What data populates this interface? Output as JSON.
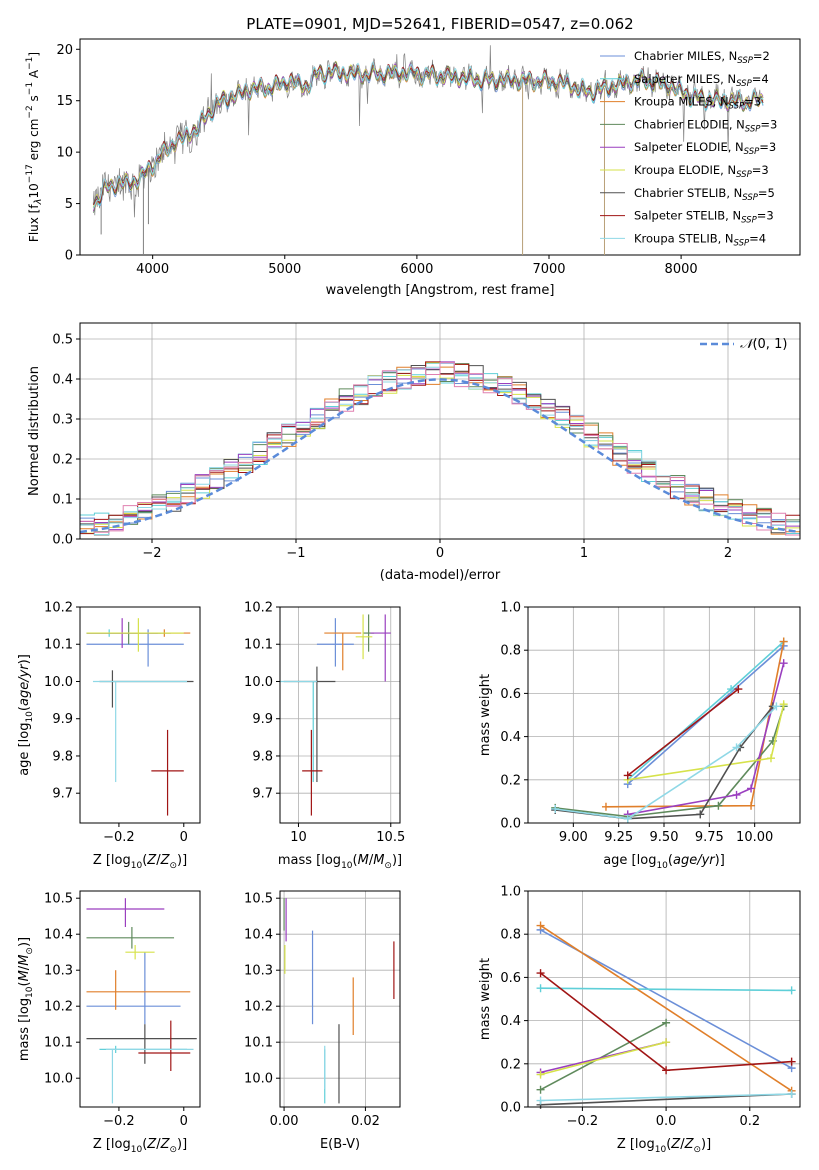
{
  "figure": {
    "title": "PLATE=0901, MJD=52641, FIBERID=0547, z=0.062"
  },
  "colors": {
    "series": [
      "#6b8fd8",
      "#5fcfd8",
      "#e07f2a",
      "#5f8a5c",
      "#9a3fbf",
      "#d6e24a",
      "#505050",
      "#a01515",
      "#8fd8e6"
    ],
    "data": "#808080",
    "pink": "#e080b0",
    "gauss": "#5b8bd9"
  },
  "legend_top": [
    "Chabrier MILES, N$_{SSP}$=2",
    "Salpeter MILES, N$_{SSP}$=4",
    "Kroupa MILES, N$_{SSP}$=3",
    "Chabrier ELODIE, N$_{SSP}$=3",
    "Salpeter ELODIE, N$_{SSP}$=3",
    "Kroupa ELODIE, N$_{SSP}$=3",
    "Chabrier STELIB, N$_{SSP}$=5",
    "Salpeter STELIB, N$_{SSP}$=3",
    "Kroupa STELIB, N$_{SSP}$=4"
  ],
  "chart_data": [
    {
      "type": "line",
      "name": "spectrum",
      "xlabel": "wavelength [Angstrom, rest frame]",
      "ylabel": "Flux [f_λ10^-17 erg cm^-2 s^-1 A^-1]",
      "xlim": [
        3450,
        8900
      ],
      "ylim": [
        0,
        21
      ],
      "xticks": [
        4000,
        5000,
        6000,
        7000,
        8000
      ],
      "yticks": [
        0,
        5,
        10,
        15,
        20
      ],
      "continuum": {
        "x": [
          3550,
          3650,
          3750,
          3850,
          3950,
          4050,
          4150,
          4250,
          4350,
          4450,
          4550,
          4650,
          4750,
          4850,
          4950,
          5050,
          5150,
          5250,
          5350,
          5500,
          5700,
          5900,
          6100,
          6300,
          6500,
          6700,
          6900,
          7100,
          7300,
          7500,
          7700,
          7900,
          8100,
          8300,
          8500,
          8700
        ],
        "y": [
          5,
          6.5,
          7,
          7,
          8,
          9.5,
          10.8,
          11.5,
          12.5,
          14.2,
          15.2,
          15.6,
          16.2,
          16.2,
          16.5,
          17,
          16.3,
          17.6,
          17.8,
          17.6,
          17.6,
          17.7,
          17.5,
          17.3,
          17.0,
          17.0,
          16.9,
          16.8,
          15.8,
          16.5,
          17.0,
          16.5,
          15.3,
          15.0,
          14.9,
          15.2
        ]
      }
    },
    {
      "type": "bar",
      "name": "residual-histogram",
      "xlabel": "(data-model)/error",
      "ylabel": "Normed distribution",
      "xlim": [
        -2.5,
        2.5
      ],
      "ylim": [
        0,
        0.54
      ],
      "xticks": [
        -2,
        -1,
        0,
        1,
        2
      ],
      "yticks": [
        0.0,
        0.1,
        0.2,
        0.3,
        0.4,
        0.5
      ],
      "bin_width": 0.1,
      "legend": "N(0,1)"
    },
    {
      "type": "scatter",
      "name": "age-vs-Z",
      "xlabel": "Z [log10(Z/Z⊙)]",
      "ylabel": "age  [log10(age/yr)]",
      "xlim": [
        -0.32,
        0.05
      ],
      "ylim": [
        9.62,
        10.2
      ],
      "xticks": [
        -0.2,
        0.0
      ],
      "yticks": [
        9.7,
        9.8,
        9.9,
        10.0,
        10.1,
        10.2
      ],
      "points": [
        {
          "x": -0.11,
          "y": 10.1,
          "xerr": [
            0.19,
            0.11
          ],
          "yerr": [
            0.06,
            0.04
          ]
        },
        {
          "x": -0.23,
          "y": 10.13,
          "xerr": [
            0.07,
            0.16
          ],
          "yerr": [
            0.01,
            0.01
          ]
        },
        {
          "x": -0.06,
          "y": 10.13,
          "xerr": [
            0.24,
            0.08
          ],
          "yerr": [
            0.01,
            0.01
          ]
        },
        {
          "x": -0.17,
          "y": 10.13,
          "xerr": [
            0.13,
            0.13
          ],
          "yerr": [
            0.03,
            0.03
          ]
        },
        {
          "x": -0.19,
          "y": 10.13,
          "xerr": [
            0.11,
            0.11
          ],
          "yerr": [
            0.04,
            0.04
          ]
        },
        {
          "x": -0.14,
          "y": 10.13,
          "xerr": [
            0.16,
            0.14
          ],
          "yerr": [
            0.05,
            0.04
          ]
        },
        {
          "x": -0.22,
          "y": 10.0,
          "xerr": [
            0.04,
            0.25
          ],
          "yerr": [
            0.07,
            0.03
          ]
        },
        {
          "x": -0.05,
          "y": 9.76,
          "xerr": [
            0.05,
            0.05
          ],
          "yerr": [
            0.12,
            0.11
          ]
        },
        {
          "x": -0.21,
          "y": 10.0,
          "xerr": [
            0.07,
            0.22
          ],
          "yerr": [
            0.27,
            0.0
          ]
        }
      ]
    },
    {
      "type": "scatter",
      "name": "age-vs-mass",
      "xlabel": "mass [log10(M/M⊙)]",
      "ylabel": "",
      "xlim": [
        9.9,
        10.55
      ],
      "ylim": [
        9.62,
        10.2
      ],
      "xticks": [
        10.0,
        10.5
      ],
      "yticks": [
        9.7,
        9.8,
        9.9,
        10.0,
        10.1,
        10.2
      ],
      "points": [
        {
          "x": 10.2,
          "y": 10.1,
          "xerr": [
            0.1,
            0.1
          ],
          "yerr": [
            0.06,
            0.07
          ]
        },
        {
          "x": 10.08,
          "y": 10.0,
          "xerr": [
            0.0,
            0.0
          ],
          "yerr": [
            0.27,
            0.0
          ]
        },
        {
          "x": 10.24,
          "y": 10.13,
          "xerr": [
            0.1,
            0.1
          ],
          "yerr": [
            0.1,
            0.0
          ]
        },
        {
          "x": 10.38,
          "y": 10.13,
          "xerr": [
            0.03,
            0.03
          ],
          "yerr": [
            0.05,
            0.05
          ]
        },
        {
          "x": 10.47,
          "y": 10.13,
          "xerr": [
            0.08,
            0.03
          ],
          "yerr": [
            0.13,
            0.05
          ]
        },
        {
          "x": 10.35,
          "y": 10.12,
          "xerr": [
            0.04,
            0.05
          ],
          "yerr": [
            0.06,
            0.06
          ]
        },
        {
          "x": 10.1,
          "y": 10.0,
          "xerr": [
            0.18,
            0.1
          ],
          "yerr": [
            0.27,
            0.04
          ]
        },
        {
          "x": 10.07,
          "y": 9.76,
          "xerr": [
            0.05,
            0.06
          ],
          "yerr": [
            0.12,
            0.11
          ]
        },
        {
          "x": 10.0,
          "y": 10.0,
          "xerr": [
            0.1,
            0.1
          ],
          "yerr": [
            0.0,
            0.0
          ]
        }
      ]
    },
    {
      "type": "line",
      "name": "mass-weight-vs-age",
      "xlabel": "age  [log10(age/yr)]",
      "ylabel": "mass weight",
      "xlim": [
        8.75,
        10.25
      ],
      "ylim": [
        0,
        1
      ],
      "xticks": [
        9.0,
        9.25,
        9.5,
        9.75,
        10.0
      ],
      "xticklabels": [
        "9.00",
        "9.25",
        "9.50",
        "9.75",
        "10.00"
      ],
      "yticks": [
        0.0,
        0.2,
        0.4,
        0.6,
        0.8,
        1.0
      ],
      "series": [
        {
          "x": [
            9.3,
            10.16
          ],
          "y": [
            0.18,
            0.82
          ]
        },
        {
          "x": [
            9.3,
            9.87,
            10.16
          ],
          "y": [
            0.2,
            0.62,
            0.84
          ]
        },
        {
          "x": [
            9.18,
            9.98,
            10.16
          ],
          "y": [
            0.075,
            0.08,
            0.84
          ]
        },
        {
          "x": [
            8.9,
            9.3,
            9.8,
            10.1,
            10.16
          ],
          "y": [
            0.07,
            0.03,
            0.08,
            0.38,
            0.54
          ]
        },
        {
          "x": [
            9.3,
            9.9,
            9.98,
            10.16
          ],
          "y": [
            0.04,
            0.13,
            0.16,
            0.74
          ]
        },
        {
          "x": [
            9.3,
            10.09,
            10.16
          ],
          "y": [
            0.2,
            0.3,
            0.55
          ]
        },
        {
          "x": [
            8.9,
            9.3,
            9.7,
            9.92,
            10.1
          ],
          "y": [
            0.06,
            0.02,
            0.04,
            0.35,
            0.54
          ]
        },
        {
          "x": [
            9.3,
            9.91
          ],
          "y": [
            0.22,
            0.62
          ]
        },
        {
          "x": [
            8.9,
            9.3,
            9.9,
            10.12
          ],
          "y": [
            0.065,
            0.02,
            0.35,
            0.54
          ]
        }
      ]
    },
    {
      "type": "scatter",
      "name": "mass-vs-Z",
      "xlabel": "Z [log10(Z/Z⊙)]",
      "ylabel": "mass [log10(M/M⊙)]",
      "xlim": [
        -0.32,
        0.05
      ],
      "ylim": [
        9.92,
        10.52
      ],
      "xticks": [
        -0.2,
        0.0
      ],
      "yticks": [
        10.0,
        10.1,
        10.2,
        10.3,
        10.4,
        10.5
      ],
      "points": [
        {
          "x": -0.12,
          "y": 10.2,
          "xerr": [
            0.18,
            0.11
          ],
          "yerr": [
            0.05,
            0.15
          ]
        },
        {
          "x": -0.21,
          "y": 10.08,
          "xerr": [
            0.05,
            0.22
          ],
          "yerr": [
            0.01,
            0.01
          ]
        },
        {
          "x": -0.21,
          "y": 10.24,
          "xerr": [
            0.09,
            0.23
          ],
          "yerr": [
            0.05,
            0.06
          ]
        },
        {
          "x": -0.16,
          "y": 10.39,
          "xerr": [
            0.14,
            0.13
          ],
          "yerr": [
            0.03,
            0.03
          ]
        },
        {
          "x": -0.18,
          "y": 10.47,
          "xerr": [
            0.12,
            0.12
          ],
          "yerr": [
            0.05,
            0.03
          ]
        },
        {
          "x": -0.15,
          "y": 10.35,
          "xerr": [
            0.03,
            0.06
          ],
          "yerr": [
            0.02,
            0.02
          ]
        },
        {
          "x": -0.12,
          "y": 10.11,
          "xerr": [
            0.18,
            0.16
          ],
          "yerr": [
            0.07,
            0.04
          ]
        },
        {
          "x": -0.04,
          "y": 10.07,
          "xerr": [
            0.1,
            0.06
          ],
          "yerr": [
            0.05,
            0.09
          ]
        },
        {
          "x": -0.22,
          "y": 10.08,
          "xerr": [
            0.02,
            0.25
          ],
          "yerr": [
            0.15,
            0.0
          ]
        }
      ]
    },
    {
      "type": "scatter",
      "name": "mass-vs-EBV",
      "xlabel": "E(B-V)",
      "ylabel": "",
      "xlim": [
        -0.001,
        0.0285
      ],
      "ylim": [
        9.92,
        10.52
      ],
      "xticks": [
        0.0,
        0.02
      ],
      "xticklabels": [
        "0.00",
        "0.02"
      ],
      "yticks": [
        10.0,
        10.1,
        10.2,
        10.3,
        10.4,
        10.5
      ],
      "points": [
        {
          "x": 0.007,
          "y": 10.28,
          "xerr": [
            0,
            0
          ],
          "yerr": [
            0.13,
            0.13
          ]
        },
        {
          "x": 0.01,
          "y": 10.03,
          "xerr": [
            0,
            0
          ],
          "yerr": [
            0.1,
            0.05
          ]
        },
        {
          "x": 0.017,
          "y": 10.17,
          "xerr": [
            0,
            0
          ],
          "yerr": [
            0.05,
            0.11
          ]
        },
        {
          "x": 0.0,
          "y": 10.45,
          "xerr": [
            0,
            0
          ],
          "yerr": [
            0.04,
            0.05
          ]
        },
        {
          "x": 0.0005,
          "y": 10.44,
          "xerr": [
            0,
            0
          ],
          "yerr": [
            0.06,
            0.06
          ]
        },
        {
          "x": 0.0002,
          "y": 10.33,
          "xerr": [
            0,
            0
          ],
          "yerr": [
            0.04,
            0.04
          ]
        },
        {
          "x": 0.0135,
          "y": 10.04,
          "xerr": [
            0,
            0
          ],
          "yerr": [
            0.11,
            0.11
          ]
        },
        {
          "x": 0.027,
          "y": 10.3,
          "xerr": [
            0,
            0
          ],
          "yerr": [
            0.08,
            0.08
          ]
        },
        {
          "x": 0.01,
          "y": 10.07,
          "xerr": [
            0,
            0
          ],
          "yerr": [
            0.1,
            0.02
          ]
        }
      ]
    },
    {
      "type": "line",
      "name": "mass-weight-vs-Z",
      "xlabel": "Z [log10(Z/Z⊙)]",
      "ylabel": "mass weight",
      "xlim": [
        -0.33,
        0.32
      ],
      "ylim": [
        0,
        1
      ],
      "xticks": [
        -0.2,
        0.0,
        0.2
      ],
      "xticklabels": [
        "−0.2",
        "0.0",
        "0.2"
      ],
      "yticks": [
        0.0,
        0.2,
        0.4,
        0.6,
        0.8,
        1.0
      ],
      "series": [
        {
          "x": [
            -0.3,
            0.3
          ],
          "y": [
            0.82,
            0.18
          ]
        },
        {
          "x": [
            -0.3,
            0.3
          ],
          "y": [
            0.55,
            0.54
          ]
        },
        {
          "x": [
            -0.3,
            0.3
          ],
          "y": [
            0.84,
            0.075
          ]
        },
        {
          "x": [
            -0.3,
            0.0
          ],
          "y": [
            0.08,
            0.39
          ]
        },
        {
          "x": [
            -0.3,
            0.0
          ],
          "y": [
            0.16,
            0.3
          ]
        },
        {
          "x": [
            -0.3,
            0.0
          ],
          "y": [
            0.15,
            0.3
          ]
        },
        {
          "x": [
            -0.3,
            0.3
          ],
          "y": [
            0.01,
            0.06
          ]
        },
        {
          "x": [
            -0.3,
            0.0,
            0.3
          ],
          "y": [
            0.62,
            0.17,
            0.21
          ]
        },
        {
          "x": [
            -0.3,
            0.3
          ],
          "y": [
            0.03,
            0.06
          ]
        }
      ]
    }
  ]
}
